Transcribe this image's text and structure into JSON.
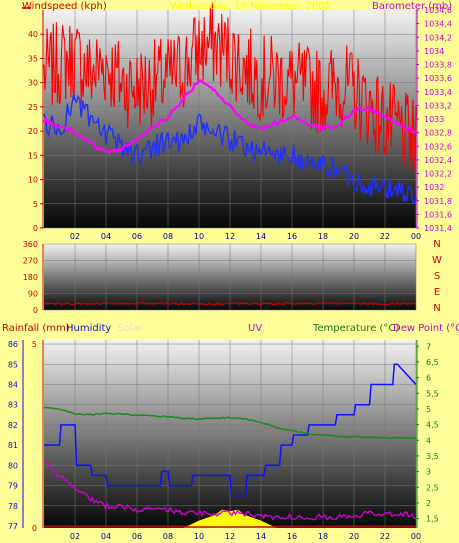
{
  "colors": {
    "background": "#ffff99",
    "windspeed": "#ff0000",
    "barometer": "#ff00ff",
    "wind_avg": "#2030ff",
    "direction": "#cc0000",
    "humidity": "#1010ff",
    "temperature": "#1a8a1a",
    "rainfall": "#cc0000",
    "uv": "#cc00cc",
    "solar": "#ffff00"
  },
  "top_panel": {
    "left_label": "Windspeed (kph)",
    "date_label": "Wednesday, 19 November 2008",
    "right_label": "Barometer (mb)"
  },
  "mid_panel": {
    "direction_letters": [
      "N",
      "W",
      "S",
      "E",
      "N"
    ]
  },
  "bottom_panel": {
    "rain_label": "Rainfall (mm)",
    "humidity_label": "Humidity",
    "solar_label": "Solar",
    "uv_label": "UV",
    "temp_label": "Temperature (°C)",
    "dew_label": "Dew Point (°C)"
  },
  "chart_data": [
    {
      "type": "line",
      "title": "",
      "x_ticks": [
        "02",
        "04",
        "06",
        "08",
        "10",
        "12",
        "14",
        "16",
        "18",
        "20",
        "22",
        "00"
      ],
      "xlim": [
        0,
        24
      ],
      "left_axis": {
        "label": "Windspeed (kph)",
        "ticks": [
          "0",
          "5",
          "10",
          "15",
          "20",
          "25",
          "30",
          "35",
          "40"
        ],
        "ylim": [
          0,
          45
        ]
      },
      "right_axis": {
        "label": "Barometer (mb)",
        "ticks": [
          "1031,4",
          "1031,6",
          "1031,8",
          "1032",
          "1032,2",
          "1032,4",
          "1032,6",
          "1032,8",
          "1033",
          "1033,2",
          "1033,4",
          "1033,6",
          "1033,8",
          "1034",
          "1034,2",
          "1034,4",
          "1034,6"
        ],
        "ylim": [
          1031.4,
          1034.6
        ]
      },
      "series": [
        {
          "name": "Windspeed (kph)",
          "axis": "left",
          "x": [
            0,
            1,
            2,
            3,
            4,
            5,
            6,
            7,
            8,
            9,
            10,
            11,
            12,
            13,
            14,
            15,
            16,
            17,
            18,
            19,
            20,
            21,
            22,
            23,
            24
          ],
          "values": [
            32,
            34,
            35,
            32,
            34,
            30,
            29,
            30,
            31,
            33,
            37,
            38,
            36,
            33,
            31,
            31,
            30,
            29,
            28,
            30,
            28,
            25,
            22,
            20,
            17
          ]
        },
        {
          "name": "Windspeed average",
          "axis": "left",
          "x": [
            0,
            1,
            2,
            3,
            4,
            5,
            6,
            7,
            8,
            9,
            10,
            11,
            12,
            13,
            14,
            15,
            16,
            17,
            18,
            19,
            20,
            21,
            22,
            23,
            24
          ],
          "values": [
            22,
            20,
            27,
            22,
            19,
            17,
            15,
            17,
            18,
            18,
            21,
            20,
            18,
            17,
            16,
            15,
            15,
            13,
            13,
            12,
            10,
            9,
            8,
            8,
            6
          ]
        },
        {
          "name": "Barometer (mb)",
          "axis": "right",
          "x": [
            0,
            1,
            2,
            3,
            4,
            5,
            6,
            7,
            8,
            9,
            10,
            11,
            12,
            13,
            14,
            15,
            16,
            17,
            18,
            19,
            20,
            21,
            22,
            23,
            24
          ],
          "values": [
            1032.98,
            1032.88,
            1032.82,
            1032.64,
            1032.52,
            1032.56,
            1032.7,
            1032.88,
            1033.02,
            1033.3,
            1033.56,
            1033.42,
            1033.18,
            1032.96,
            1032.86,
            1032.94,
            1033.04,
            1032.92,
            1032.86,
            1032.92,
            1033.12,
            1033.16,
            1033.02,
            1032.9,
            1032.8
          ]
        }
      ]
    },
    {
      "type": "line",
      "title": "",
      "x_ticks": [
        "02",
        "04",
        "06",
        "08",
        "10",
        "12",
        "14",
        "16",
        "18",
        "20",
        "22",
        "00"
      ],
      "xlim": [
        0,
        24
      ],
      "left_axis": {
        "label": "",
        "ticks": [
          "0",
          "90",
          "180",
          "270",
          "360"
        ],
        "ylim": [
          0,
          360
        ]
      },
      "right_axis": {
        "label": "",
        "ticks": [
          "N",
          "W",
          "S",
          "E",
          "N"
        ]
      },
      "series": [
        {
          "name": "Wind direction",
          "axis": "left",
          "x": [
            0,
            2,
            4,
            6,
            8,
            10,
            12,
            14,
            16,
            18,
            20,
            22,
            24
          ],
          "values": [
            35,
            32,
            36,
            34,
            38,
            33,
            36,
            34,
            35,
            37,
            36,
            34,
            35
          ]
        }
      ]
    },
    {
      "type": "line",
      "title": "",
      "x_ticks": [
        "02",
        "04",
        "06",
        "08",
        "10",
        "12",
        "14",
        "16",
        "18",
        "20",
        "22",
        "00"
      ],
      "xlim": [
        0,
        24
      ],
      "left_axis": {
        "label": "Humidity",
        "ticks": [
          "77",
          "78",
          "79",
          "80",
          "81",
          "82",
          "83",
          "84",
          "85",
          "86"
        ],
        "ylim": [
          76.9,
          86.2
        ]
      },
      "rain_axis": {
        "label": "Rainfall (mm)",
        "ticks": [
          "0",
          "5"
        ],
        "ylim": [
          0,
          5
        ]
      },
      "right_axis": {
        "label": "Temperature (°C)",
        "ticks": [
          "1,5",
          "2",
          "2,5",
          "3",
          "3,5",
          "4",
          "4,5",
          "5",
          "5,5",
          "6",
          "6,5",
          "7"
        ],
        "ylim": [
          1.2,
          7.2
        ]
      },
      "series": [
        {
          "name": "Humidity",
          "axis": "left",
          "x": [
            0,
            1,
            1.1,
            2,
            2.1,
            3,
            3.1,
            4,
            4.1,
            7.5,
            7.6,
            8,
            8.1,
            9.5,
            9.6,
            12,
            12.1,
            13,
            13.1,
            14.2,
            14.3,
            15.2,
            15.3,
            16,
            16.1,
            17,
            17.1,
            18.8,
            18.9,
            20,
            20.1,
            21,
            21.1,
            22.5,
            22.6,
            22.8,
            24
          ],
          "values": [
            81,
            81,
            82,
            82,
            80,
            80,
            79.5,
            79.5,
            79,
            79,
            79.7,
            79.7,
            79,
            79,
            79.5,
            79.5,
            78.5,
            78.5,
            79.5,
            79.5,
            80,
            80,
            81,
            81,
            81.5,
            81.5,
            82,
            82,
            82.5,
            82.5,
            83,
            83,
            84,
            84,
            85,
            85,
            84
          ]
        },
        {
          "name": "Temperature (°C)",
          "axis": "right",
          "x": [
            0,
            1,
            2,
            3,
            4,
            5,
            6,
            7,
            8,
            9,
            10,
            11,
            12,
            13,
            14,
            15,
            16,
            17,
            18,
            19,
            20,
            21,
            22,
            23,
            24
          ],
          "values": [
            5.05,
            5.0,
            4.85,
            4.82,
            4.85,
            4.84,
            4.8,
            4.78,
            4.75,
            4.7,
            4.68,
            4.7,
            4.72,
            4.68,
            4.58,
            4.4,
            4.3,
            4.22,
            4.16,
            4.12,
            4.1,
            4.1,
            4.08,
            4.08,
            4.08
          ]
        },
        {
          "name": "UV",
          "axis": "rain",
          "x": [
            0,
            1,
            2,
            3,
            4,
            5,
            6,
            7,
            8,
            9,
            10,
            11,
            12,
            13,
            14,
            15,
            16,
            17,
            18,
            19,
            20,
            21,
            22,
            23,
            24
          ],
          "values": [
            1.8,
            1.4,
            1.1,
            0.8,
            0.6,
            0.6,
            0.5,
            0.5,
            0.5,
            0.4,
            0.4,
            0.4,
            0.4,
            0.4,
            0.3,
            0.3,
            0.3,
            0.3,
            0.3,
            0.3,
            0.3,
            0.4,
            0.4,
            0.4,
            0.3
          ]
        },
        {
          "name": "Solar",
          "axis": "rain",
          "x": [
            9,
            10,
            11,
            11.5,
            12,
            12.5,
            13,
            14,
            15
          ],
          "values": [
            0,
            0.2,
            0.35,
            0.5,
            0.45,
            0.5,
            0.35,
            0.2,
            0
          ]
        }
      ]
    }
  ]
}
